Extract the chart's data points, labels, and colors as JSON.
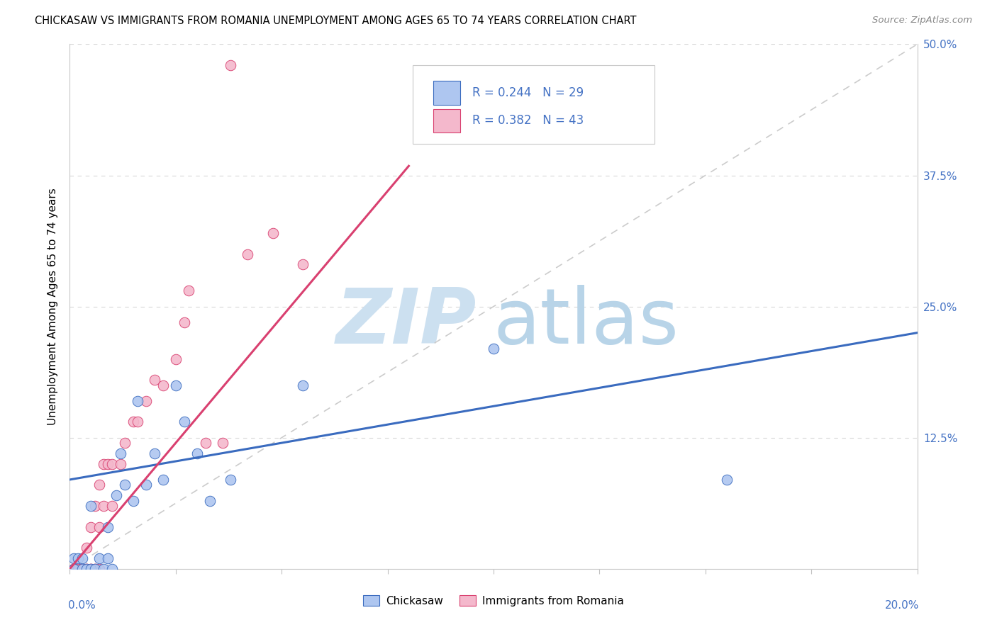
{
  "title": "CHICKASAW VS IMMIGRANTS FROM ROMANIA UNEMPLOYMENT AMONG AGES 65 TO 74 YEARS CORRELATION CHART",
  "source": "Source: ZipAtlas.com",
  "ylabel": "Unemployment Among Ages 65 to 74 years",
  "xlim": [
    0.0,
    0.2
  ],
  "ylim": [
    0.0,
    0.5
  ],
  "color_chickasaw": "#aec6f0",
  "color_romania": "#f4b8cc",
  "color_chickasaw_line": "#3a6bbf",
  "color_romania_line": "#d94070",
  "color_diagonal": "#cccccc",
  "color_axis_text": "#4472c4",
  "watermark_zip_color": "#cce0f0",
  "watermark_atlas_color": "#b8d4e8",
  "chickasaw_x": [
    0.001,
    0.001,
    0.002,
    0.003,
    0.003,
    0.004,
    0.005,
    0.005,
    0.006,
    0.007,
    0.008,
    0.009,
    0.009,
    0.01,
    0.011,
    0.012,
    0.013,
    0.015,
    0.016,
    0.018,
    0.02,
    0.022,
    0.025,
    0.027,
    0.03,
    0.033,
    0.038,
    0.055,
    0.1,
    0.155
  ],
  "chickasaw_y": [
    0.01,
    0.0,
    0.01,
    0.01,
    0.0,
    0.0,
    0.06,
    0.0,
    0.0,
    0.01,
    0.0,
    0.04,
    0.01,
    0.0,
    0.07,
    0.11,
    0.08,
    0.065,
    0.16,
    0.08,
    0.11,
    0.085,
    0.175,
    0.14,
    0.11,
    0.065,
    0.085,
    0.175,
    0.21,
    0.085
  ],
  "romania_x": [
    0.001,
    0.001,
    0.001,
    0.002,
    0.002,
    0.002,
    0.003,
    0.003,
    0.003,
    0.003,
    0.004,
    0.004,
    0.004,
    0.005,
    0.005,
    0.005,
    0.006,
    0.006,
    0.006,
    0.007,
    0.007,
    0.007,
    0.008,
    0.008,
    0.009,
    0.01,
    0.01,
    0.012,
    0.013,
    0.015,
    0.016,
    0.018,
    0.02,
    0.022,
    0.025,
    0.027,
    0.028,
    0.032,
    0.036,
    0.038,
    0.042,
    0.048,
    0.055
  ],
  "romania_y": [
    0.0,
    0.0,
    0.0,
    0.0,
    0.0,
    0.0,
    0.0,
    0.0,
    0.0,
    0.0,
    0.0,
    0.0,
    0.02,
    0.0,
    0.0,
    0.04,
    0.0,
    0.0,
    0.06,
    0.0,
    0.04,
    0.08,
    0.06,
    0.1,
    0.1,
    0.06,
    0.1,
    0.1,
    0.12,
    0.14,
    0.14,
    0.16,
    0.18,
    0.175,
    0.2,
    0.235,
    0.265,
    0.12,
    0.12,
    0.48,
    0.3,
    0.32,
    0.29
  ]
}
